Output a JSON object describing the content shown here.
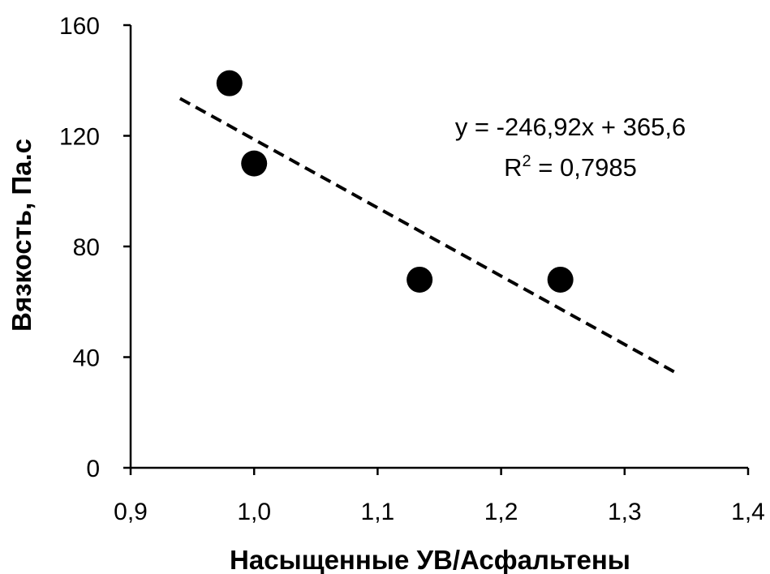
{
  "chart_data": {
    "type": "scatter",
    "xlabel": "Насыщенные УВ/Асфальтены",
    "ylabel": "Вязкость, Па.с",
    "xlim": [
      0.9,
      1.4
    ],
    "ylim": [
      0,
      160
    ],
    "x_ticks": [
      "0,9",
      "1,0",
      "1,1",
      "1,2",
      "1,3",
      "1,4"
    ],
    "x_tick_values": [
      0.9,
      1.0,
      1.1,
      1.2,
      1.3,
      1.4
    ],
    "y_ticks": [
      "0",
      "40",
      "80",
      "120",
      "160"
    ],
    "y_tick_values": [
      0,
      40,
      80,
      120,
      160
    ],
    "grid": false,
    "legend": "none",
    "series": [
      {
        "points": [
          {
            "x": 0.98,
            "y": 139
          },
          {
            "x": 1.0,
            "y": 110
          },
          {
            "x": 1.134,
            "y": 68
          },
          {
            "x": 1.248,
            "y": 68
          }
        ],
        "color": "#000000"
      }
    ],
    "trendline": {
      "type": "linear",
      "slope": -246.92,
      "intercept": 365.6,
      "x_range": [
        0.94,
        1.34
      ],
      "style": "dashed",
      "color": "#000000",
      "equation_label": "y = -246,92x + 365,6",
      "r2_prefix": "R",
      "r2_sup": "2",
      "r2_value": " = 0,7985"
    }
  }
}
